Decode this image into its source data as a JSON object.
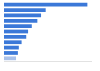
{
  "chart_data": {
    "type": "bar",
    "orientation": "horizontal",
    "categories": [
      null,
      null,
      null,
      null,
      null,
      null,
      null,
      null,
      null,
      null,
      null
    ],
    "values": [
      90,
      45,
      40,
      36,
      30,
      26,
      24,
      19,
      16,
      15,
      13
    ],
    "colors": [
      "#3b78d8",
      "#3b78d8",
      "#3b78d8",
      "#3b78d8",
      "#3b78d8",
      "#3b78d8",
      "#3b78d8",
      "#3b78d8",
      "#3b78d8",
      "#3b78d8",
      "#a9c1ea"
    ],
    "xlim": [
      0,
      95
    ],
    "grid": false,
    "tick_labels": false
  }
}
